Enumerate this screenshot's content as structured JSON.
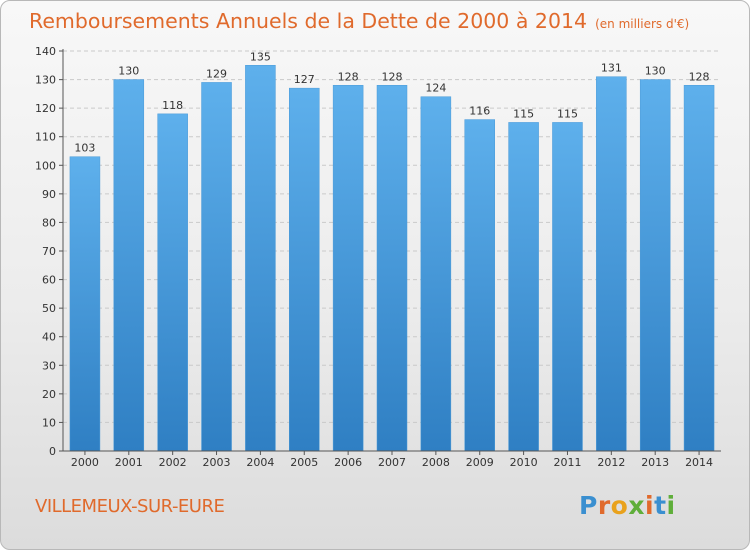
{
  "title": "Remboursements Annuels de la Dette de 2000 à 2014",
  "unit": "(en milliers d'€)",
  "commune": "VILLEMEUX-SUR-EURE",
  "logo": "Proxiti",
  "colors": {
    "title": "#e06a2c",
    "bar_top": "#5eb0ec",
    "bar_bottom": "#2f7fc3",
    "grid": "#c9c9c9",
    "axis": "#555555"
  },
  "chart_data": {
    "type": "bar",
    "title": "Remboursements Annuels de la Dette de 2000 à 2014",
    "xlabel": "",
    "ylabel": "",
    "categories": [
      "2000",
      "2001",
      "2002",
      "2003",
      "2004",
      "2005",
      "2006",
      "2007",
      "2008",
      "2009",
      "2010",
      "2011",
      "2012",
      "2013",
      "2014"
    ],
    "values": [
      103,
      130,
      118,
      129,
      135,
      127,
      128,
      128,
      124,
      116,
      115,
      115,
      131,
      130,
      128
    ],
    "ylim": [
      0,
      140
    ],
    "yticks": [
      0,
      10,
      20,
      30,
      40,
      50,
      60,
      70,
      80,
      90,
      100,
      110,
      120,
      130,
      140
    ],
    "grid": true,
    "data_labels": true
  }
}
